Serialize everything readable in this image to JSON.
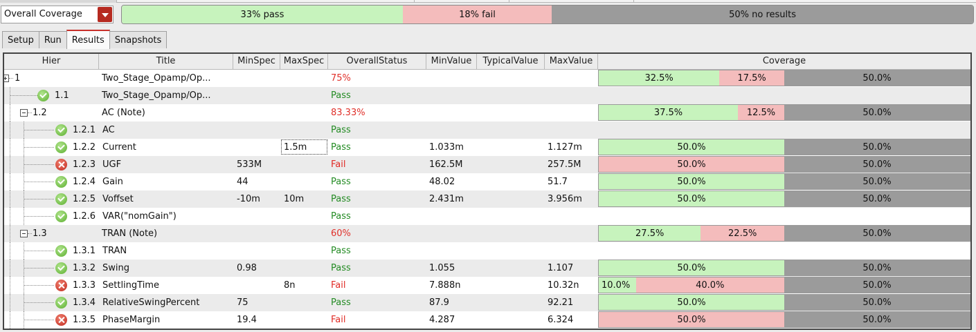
{
  "coverage_dropdown": {
    "selected": "Overall Coverage"
  },
  "summary": {
    "pass_label": "33% pass",
    "pass_pct": 33,
    "fail_label": "18% fail",
    "fail_pct": 18,
    "noresult_label": "50% no results",
    "noresult_pct": 50
  },
  "tabs": [
    {
      "label": "Setup",
      "active": false
    },
    {
      "label": "Run",
      "active": false
    },
    {
      "label": "Results",
      "active": true
    },
    {
      "label": "Snapshots",
      "active": false
    }
  ],
  "columns": [
    "Hier",
    "Title",
    "MinSpec",
    "MaxSpec",
    "OverallStatus",
    "MinValue",
    "TypicalValue",
    "MaxValue",
    "Coverage"
  ],
  "colors": {
    "pass": "#c7f3bd",
    "fail": "#f4bcbc",
    "no_result": "#9b9b9b",
    "status_pass": "#238b23",
    "status_fail": "#e02a24"
  },
  "rows": [
    {
      "hier": "1",
      "title": "Two_Stage_Opamp/Op...",
      "minspec": "",
      "maxspec": "",
      "status": "75%",
      "status_type": "pct",
      "minvalue": "",
      "typical": "",
      "maxvalue": "",
      "icon": "",
      "coverage": [
        {
          "label": "32.5%",
          "pct": 32.5,
          "kind": "pass"
        },
        {
          "label": "17.5%",
          "pct": 17.5,
          "kind": "fail"
        },
        {
          "label": "50.0%",
          "pct": 50,
          "kind": "nores"
        }
      ]
    },
    {
      "hier": "1.1",
      "title": "Two_Stage_Opamp/Op...",
      "minspec": "",
      "maxspec": "",
      "status": "Pass",
      "status_type": "pass",
      "minvalue": "",
      "typical": "",
      "maxvalue": "",
      "icon": "check-icon",
      "coverage": []
    },
    {
      "hier": "1.2",
      "title": "AC (Note)",
      "minspec": "",
      "maxspec": "",
      "status": "83.33%",
      "status_type": "pct",
      "minvalue": "",
      "typical": "",
      "maxvalue": "",
      "icon": "",
      "coverage": [
        {
          "label": "37.5%",
          "pct": 37.5,
          "kind": "pass"
        },
        {
          "label": "12.5%",
          "pct": 12.5,
          "kind": "fail"
        },
        {
          "label": "50.0%",
          "pct": 50,
          "kind": "nores"
        }
      ]
    },
    {
      "hier": "1.2.1",
      "title": "AC",
      "minspec": "",
      "maxspec": "",
      "status": "Pass",
      "status_type": "pass",
      "minvalue": "",
      "typical": "",
      "maxvalue": "",
      "icon": "check-icon",
      "coverage": []
    },
    {
      "hier": "1.2.2",
      "title": "Current",
      "minspec": "",
      "maxspec": "1.5m",
      "status": "Pass",
      "status_type": "pass",
      "minvalue": "1.033m",
      "typical": "",
      "maxvalue": "1.127m",
      "icon": "check-icon",
      "coverage": [
        {
          "label": "50.0%",
          "pct": 50,
          "kind": "pass"
        },
        {
          "label": "50.0%",
          "pct": 50,
          "kind": "nores"
        }
      ]
    },
    {
      "hier": "1.2.3",
      "title": "UGF",
      "minspec": "533M",
      "maxspec": "",
      "status": "Fail",
      "status_type": "fail",
      "minvalue": "162.5M",
      "typical": "",
      "maxvalue": "257.5M",
      "icon": "x-icon",
      "coverage": [
        {
          "label": "50.0%",
          "pct": 50,
          "kind": "fail"
        },
        {
          "label": "50.0%",
          "pct": 50,
          "kind": "nores"
        }
      ]
    },
    {
      "hier": "1.2.4",
      "title": "Gain",
      "minspec": "44",
      "maxspec": "",
      "status": "Pass",
      "status_type": "pass",
      "minvalue": "48.02",
      "typical": "",
      "maxvalue": "51.7",
      "icon": "check-icon",
      "coverage": [
        {
          "label": "50.0%",
          "pct": 50,
          "kind": "pass"
        },
        {
          "label": "50.0%",
          "pct": 50,
          "kind": "nores"
        }
      ]
    },
    {
      "hier": "1.2.5",
      "title": "Voffset",
      "minspec": "-10m",
      "maxspec": "10m",
      "status": "Pass",
      "status_type": "pass",
      "minvalue": "2.431m",
      "typical": "",
      "maxvalue": "3.956m",
      "icon": "check-icon",
      "coverage": [
        {
          "label": "50.0%",
          "pct": 50,
          "kind": "pass"
        },
        {
          "label": "50.0%",
          "pct": 50,
          "kind": "nores"
        }
      ]
    },
    {
      "hier": "1.2.6",
      "title": "VAR(\"nomGain\")",
      "minspec": "",
      "maxspec": "",
      "status": "Pass",
      "status_type": "pass",
      "minvalue": "",
      "typical": "",
      "maxvalue": "",
      "icon": "check-icon",
      "coverage": []
    },
    {
      "hier": "1.3",
      "title": "TRAN (Note)",
      "minspec": "",
      "maxspec": "",
      "status": "60%",
      "status_type": "pct",
      "minvalue": "",
      "typical": "",
      "maxvalue": "",
      "icon": "",
      "coverage": [
        {
          "label": "27.5%",
          "pct": 27.5,
          "kind": "pass"
        },
        {
          "label": "22.5%",
          "pct": 22.5,
          "kind": "fail"
        },
        {
          "label": "50.0%",
          "pct": 50,
          "kind": "nores"
        }
      ]
    },
    {
      "hier": "1.3.1",
      "title": "TRAN",
      "minspec": "",
      "maxspec": "",
      "status": "Pass",
      "status_type": "pass",
      "minvalue": "",
      "typical": "",
      "maxvalue": "",
      "icon": "check-icon",
      "coverage": []
    },
    {
      "hier": "1.3.2",
      "title": "Swing",
      "minspec": "0.98",
      "maxspec": "",
      "status": "Pass",
      "status_type": "pass",
      "minvalue": "1.055",
      "typical": "",
      "maxvalue": "1.107",
      "icon": "check-icon",
      "coverage": [
        {
          "label": "50.0%",
          "pct": 50,
          "kind": "pass"
        },
        {
          "label": "50.0%",
          "pct": 50,
          "kind": "nores"
        }
      ]
    },
    {
      "hier": "1.3.3",
      "title": "SettlingTime",
      "minspec": "",
      "maxspec": "8n",
      "status": "Fail",
      "status_type": "fail",
      "minvalue": "7.888n",
      "typical": "",
      "maxvalue": "10.32n",
      "icon": "x-icon",
      "coverage": [
        {
          "label": "10.0%",
          "pct": 10,
          "kind": "pass"
        },
        {
          "label": "40.0%",
          "pct": 40,
          "kind": "fail"
        },
        {
          "label": "50.0%",
          "pct": 50,
          "kind": "nores"
        }
      ]
    },
    {
      "hier": "1.3.4",
      "title": "RelativeSwingPercent",
      "minspec": "75",
      "maxspec": "",
      "status": "Pass",
      "status_type": "pass",
      "minvalue": "87.9",
      "typical": "",
      "maxvalue": "92.21",
      "icon": "check-icon",
      "coverage": [
        {
          "label": "50.0%",
          "pct": 50,
          "kind": "pass"
        },
        {
          "label": "50.0%",
          "pct": 50,
          "kind": "nores"
        }
      ]
    },
    {
      "hier": "1.3.5",
      "title": "PhaseMargin",
      "minspec": "19.4",
      "maxspec": "",
      "status": "Fail",
      "status_type": "fail",
      "minvalue": "4.287",
      "typical": "",
      "maxvalue": "6.324",
      "icon": "x-icon",
      "coverage": [
        {
          "label": "50.0%",
          "pct": 50,
          "kind": "fail"
        },
        {
          "label": "50.0%",
          "pct": 50,
          "kind": "nores"
        }
      ]
    }
  ]
}
